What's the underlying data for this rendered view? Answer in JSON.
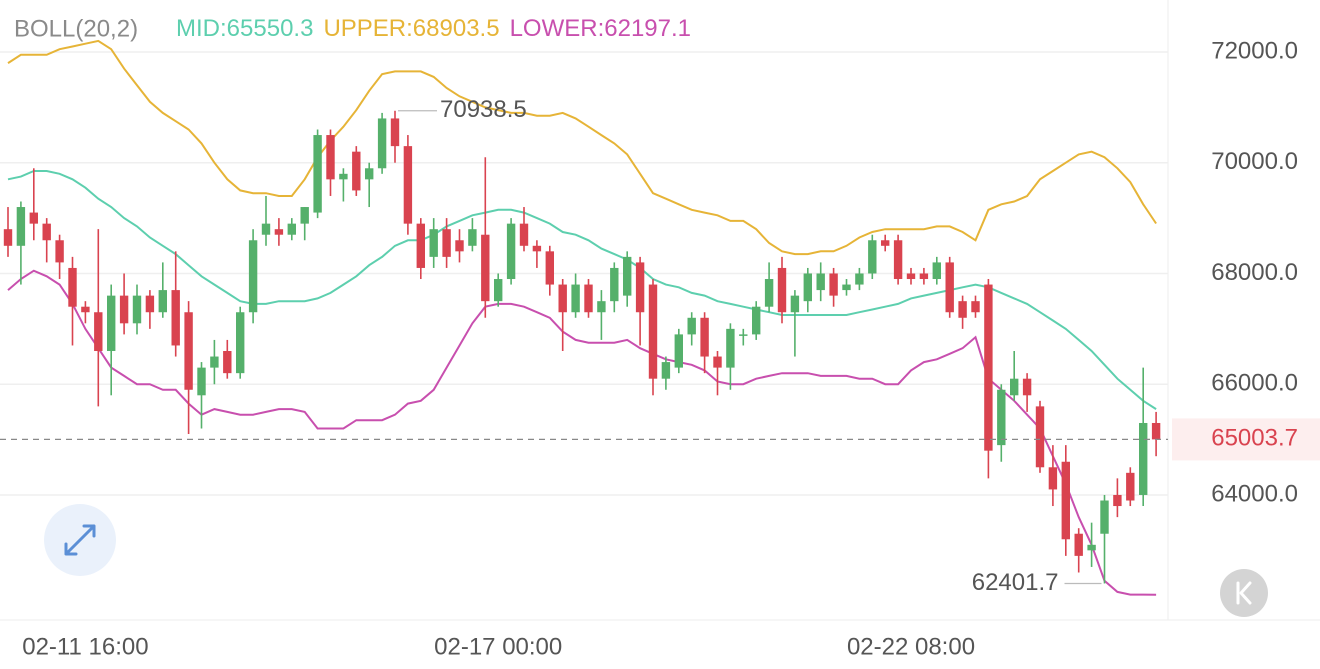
{
  "chart_data": {
    "type": "candlestick",
    "indicator": "BOLL(20,2)",
    "categories": [
      null,
      null,
      null,
      null,
      null,
      null,
      "02-11 16:00",
      null,
      null,
      null,
      null,
      null,
      null,
      null,
      null,
      null,
      null,
      null,
      null,
      null,
      null,
      null,
      null,
      null,
      null,
      null,
      null,
      null,
      null,
      null,
      null,
      null,
      null,
      null,
      null,
      null,
      null,
      null,
      "02-17 00:00",
      null,
      null,
      null,
      null,
      null,
      null,
      null,
      null,
      null,
      null,
      null,
      null,
      null,
      null,
      null,
      null,
      null,
      null,
      null,
      null,
      null,
      null,
      null,
      null,
      null,
      null,
      null,
      null,
      null,
      null,
      null,
      "02-22 08:00",
      null,
      null,
      null,
      null,
      null,
      null,
      null,
      null,
      null,
      null,
      null,
      null,
      null,
      null,
      null,
      null,
      null,
      null,
      null
    ],
    "open": [
      68800,
      68500,
      69100,
      68900,
      68600,
      68100,
      67400,
      67300,
      66600,
      67600,
      67100,
      67600,
      67300,
      67700,
      67300,
      65800,
      66300,
      66600,
      66200,
      67300,
      68700,
      68800,
      68700,
      68900,
      69100,
      70500,
      69700,
      70200,
      69700,
      69900,
      70800,
      70300,
      68900,
      68300,
      68800,
      68600,
      68500,
      68700,
      67500,
      67900,
      68900,
      68500,
      68400,
      67800,
      67300,
      67800,
      67300,
      67500,
      67600,
      68200,
      67800,
      66100,
      66300,
      66900,
      67200,
      66500,
      66300,
      66900,
      66900,
      67400,
      68100,
      67300,
      67500,
      67700,
      68000,
      67700,
      67800,
      68000,
      68600,
      68600,
      68000,
      68000,
      67900,
      68200,
      67500,
      67500,
      67800,
      64900,
      65800,
      66100,
      65600,
      64500,
      64600,
      63300,
      63000,
      63300,
      64000,
      64400,
      64000,
      65300
    ],
    "high": [
      69200,
      69300,
      69900,
      69000,
      68700,
      68300,
      67500,
      68800,
      67800,
      68000,
      67800,
      67700,
      68200,
      68400,
      67500,
      66400,
      66800,
      66800,
      67400,
      68800,
      69400,
      69000,
      69000,
      69200,
      70600,
      70600,
      69900,
      70300,
      70000,
      70900,
      70938.5,
      70500,
      69000,
      69000,
      69000,
      68800,
      69000,
      70100,
      68000,
      69000,
      69200,
      68600,
      68500,
      67900,
      68000,
      67900,
      67700,
      68200,
      68400,
      68300,
      67900,
      66500,
      67000,
      67300,
      67300,
      66600,
      67100,
      67000,
      67500,
      68200,
      68300,
      67700,
      68100,
      68200,
      68100,
      67900,
      68100,
      68700,
      68700,
      68700,
      68100,
      68100,
      68300,
      68300,
      67600,
      67600,
      67900,
      66000,
      66600,
      66200,
      65700,
      64900,
      64900,
      63400,
      63500,
      64000,
      64300,
      64500,
      66300,
      65500
    ],
    "low": [
      68300,
      67800,
      68600,
      68200,
      67900,
      66700,
      67100,
      65600,
      65800,
      66900,
      66900,
      67000,
      67200,
      66500,
      65100,
      65200,
      66000,
      66100,
      66100,
      67100,
      68500,
      68500,
      68600,
      68600,
      69000,
      69400,
      69300,
      69400,
      69200,
      69800,
      70000,
      68700,
      67900,
      68100,
      68100,
      68200,
      68400,
      67200,
      67400,
      67800,
      68400,
      68100,
      67600,
      66600,
      67200,
      67200,
      66800,
      67300,
      67400,
      66700,
      65800,
      65900,
      66200,
      66700,
      66200,
      65800,
      65900,
      66700,
      66800,
      67300,
      67100,
      66500,
      67300,
      67500,
      67400,
      67600,
      67700,
      67900,
      68400,
      67800,
      67800,
      67800,
      67800,
      67200,
      67000,
      67200,
      64300,
      64600,
      65700,
      65500,
      64400,
      63800,
      62900,
      62600,
      62700,
      62401.7,
      63600,
      63800,
      63800,
      64700
    ],
    "close": [
      68500,
      69200,
      68900,
      68600,
      68200,
      67400,
      67300,
      66600,
      67600,
      67100,
      67600,
      67300,
      67700,
      66700,
      65900,
      66300,
      66500,
      66200,
      67300,
      68600,
      68900,
      68700,
      68900,
      69200,
      70500,
      69700,
      69800,
      69500,
      69900,
      70800,
      70300,
      68900,
      68100,
      68800,
      68300,
      68400,
      68800,
      67500,
      67900,
      68900,
      68500,
      68400,
      67800,
      67300,
      67800,
      67300,
      67500,
      68100,
      68300,
      67300,
      66100,
      66400,
      66900,
      67200,
      66500,
      66300,
      67000,
      66900,
      67400,
      67900,
      67300,
      67600,
      68000,
      68000,
      67600,
      67800,
      68000,
      68600,
      68500,
      67900,
      67900,
      67900,
      68200,
      67300,
      67200,
      67300,
      64800,
      65900,
      66100,
      65800,
      64500,
      64100,
      63200,
      62900,
      63100,
      63900,
      63800,
      63900,
      65300,
      65003.7
    ],
    "up_color": "#55b06b",
    "down_color": "#d9434f",
    "series": [
      {
        "name": "MID:",
        "color": "#5dcfae",
        "values": [
          69700,
          69750,
          69850,
          69850,
          69800,
          69700,
          69550,
          69350,
          69200,
          69000,
          68850,
          68650,
          68500,
          68350,
          68150,
          67950,
          67800,
          67650,
          67500,
          67450,
          67450,
          67500,
          67500,
          67500,
          67550,
          67650,
          67800,
          67950,
          68150,
          68300,
          68500,
          68600,
          68600,
          68700,
          68850,
          68950,
          69050,
          69100,
          69150,
          69150,
          69100,
          69000,
          68900,
          68750,
          68700,
          68600,
          68450,
          68350,
          68250,
          68100,
          67900,
          67800,
          67750,
          67650,
          67600,
          67500,
          67450,
          67400,
          67350,
          67300,
          67250,
          67250,
          67250,
          67250,
          67250,
          67250,
          67300,
          67350,
          67400,
          67450,
          67550,
          67600,
          67650,
          67700,
          67750,
          67800,
          67750,
          67650,
          67550,
          67450,
          67300,
          67150,
          67000,
          66800,
          66600,
          66350,
          66100,
          65900,
          65700,
          65550.3
        ]
      },
      {
        "name": "UPPER:",
        "color": "#e6b437",
        "values": [
          71800,
          71950,
          71950,
          71950,
          72050,
          72100,
          72150,
          72200,
          72050,
          71700,
          71400,
          71100,
          70900,
          70750,
          70600,
          70350,
          70000,
          69700,
          69500,
          69450,
          69450,
          69400,
          69400,
          69700,
          70100,
          70400,
          70650,
          70950,
          71300,
          71600,
          71650,
          71650,
          71650,
          71550,
          71350,
          71200,
          71100,
          71000,
          70950,
          70900,
          70900,
          70850,
          70850,
          70900,
          70800,
          70650,
          70500,
          70350,
          70150,
          69800,
          69450,
          69350,
          69250,
          69150,
          69100,
          69050,
          68950,
          68950,
          68800,
          68550,
          68400,
          68350,
          68350,
          68400,
          68400,
          68500,
          68650,
          68750,
          68800,
          68800,
          68800,
          68800,
          68850,
          68850,
          68750,
          68600,
          69150,
          69250,
          69300,
          69400,
          69700,
          69850,
          70000,
          70150,
          70200,
          70100,
          69900,
          69650,
          69250,
          68903.5
        ]
      },
      {
        "name": "LOWER:",
        "color": "#c84fae",
        "values": [
          67700,
          67900,
          68050,
          67950,
          67800,
          67450,
          67000,
          66650,
          66300,
          66150,
          66000,
          66000,
          65900,
          65900,
          65650,
          65450,
          65550,
          65500,
          65450,
          65450,
          65500,
          65550,
          65550,
          65500,
          65200,
          65200,
          65200,
          65350,
          65350,
          65350,
          65450,
          65650,
          65700,
          65900,
          66300,
          66700,
          67100,
          67400,
          67450,
          67450,
          67400,
          67300,
          67200,
          66950,
          66800,
          66750,
          66750,
          66750,
          66800,
          66650,
          66550,
          66450,
          66400,
          66350,
          66250,
          66050,
          66000,
          66000,
          66100,
          66150,
          66200,
          66200,
          66200,
          66150,
          66150,
          66150,
          66100,
          66100,
          66000,
          66000,
          66250,
          66400,
          66450,
          66550,
          66650,
          66850,
          66100,
          65900,
          65700,
          65450,
          65200,
          64700,
          64200,
          63600,
          63100,
          62450,
          62250,
          62200,
          62200,
          62197.1
        ]
      }
    ],
    "ylim": [
      61742,
      72939
    ],
    "yticks": [
      {
        "value": 64000,
        "label": "64000.0"
      },
      {
        "value": 66000,
        "label": "66000.0"
      },
      {
        "value": 68000,
        "label": "68000.0"
      },
      {
        "value": 70000,
        "label": "70000.0"
      },
      {
        "value": 72000,
        "label": "72000.0"
      }
    ],
    "grid": true,
    "last_price_line": true
  }
}
